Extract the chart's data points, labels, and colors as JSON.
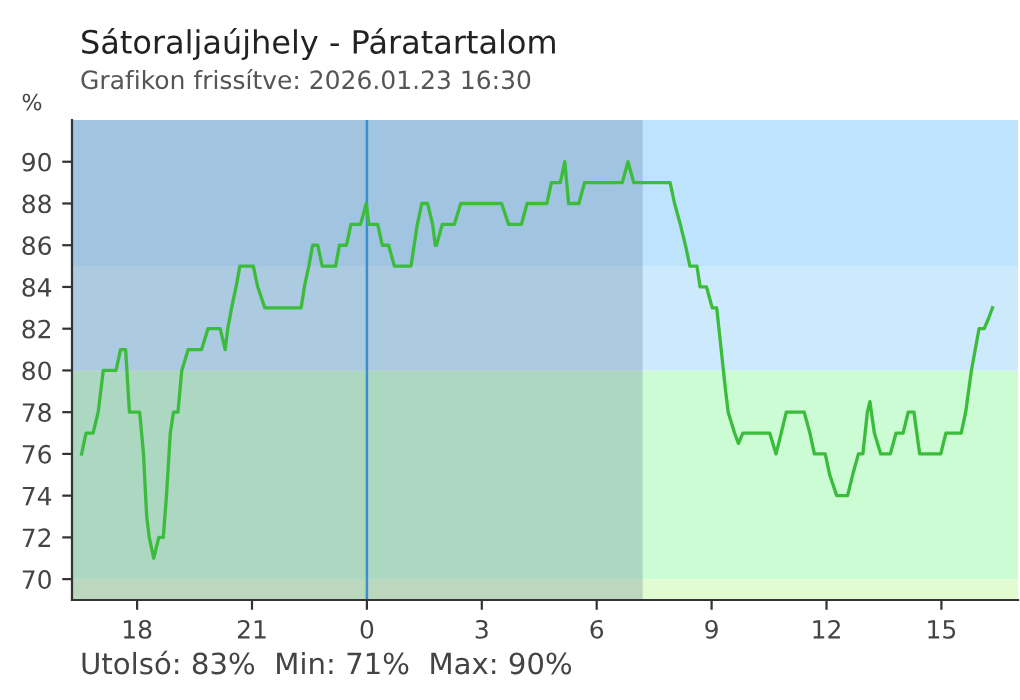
{
  "chart_data": {
    "type": "line",
    "title": "Sátoraljaújhely - Páratartalom",
    "subtitle": "Grafikon frissítve: 2026.01.23 16:30",
    "ylabel": "%",
    "annotations": [
      "Utolsó: 83%  Min: 71%  Max: 90%"
    ],
    "xlim": [
      "2026-01-22T16:18",
      "2026-01-23T17:00"
    ],
    "ylim": [
      69,
      92
    ],
    "xticks": [
      {
        "value": "2026-01-22T18:00",
        "label": "18"
      },
      {
        "value": "2026-01-22T21:00",
        "label": "21"
      },
      {
        "value": "2026-01-23T00:00",
        "label": "0"
      },
      {
        "value": "2026-01-23T03:00",
        "label": "3"
      },
      {
        "value": "2026-01-23T06:00",
        "label": "6"
      },
      {
        "value": "2026-01-23T09:00",
        "label": "9"
      },
      {
        "value": "2026-01-23T12:00",
        "label": "12"
      },
      {
        "value": "2026-01-23T15:00",
        "label": "15"
      }
    ],
    "yticks": [
      70,
      72,
      74,
      76,
      78,
      80,
      82,
      84,
      86,
      88,
      90
    ],
    "bands": [
      {
        "axis": "y",
        "from": 69,
        "to": 70,
        "color": "#e0fcd0"
      },
      {
        "axis": "y",
        "from": 70,
        "to": 80,
        "color": "#ccfcd4"
      },
      {
        "axis": "y",
        "from": 80,
        "to": 85,
        "color": "#cdeafd"
      },
      {
        "axis": "y",
        "from": 85,
        "to": 92,
        "color": "#bee3fc"
      },
      {
        "axis": "x",
        "from": "2026-01-22T16:18",
        "to": "2026-01-23T07:12",
        "color": "#4a6a8a"
      }
    ],
    "ref_lines": [
      {
        "axis": "x",
        "value": "2026-01-23T00:00",
        "color": "#3a8fd0"
      }
    ],
    "series": [
      {
        "color": "#3cbc3c",
        "x": [
          "2026-01-22T16:33",
          "2026-01-22T16:40",
          "2026-01-22T16:51",
          "2026-01-22T16:59",
          "2026-01-22T17:07",
          "2026-01-22T17:13",
          "2026-01-22T17:27",
          "2026-01-22T17:34",
          "2026-01-22T17:42",
          "2026-01-22T17:48",
          "2026-01-22T17:55",
          "2026-01-22T18:04",
          "2026-01-22T18:10",
          "2026-01-22T18:15",
          "2026-01-22T18:19",
          "2026-01-22T18:26",
          "2026-01-22T18:34",
          "2026-01-22T18:41",
          "2026-01-22T18:46",
          "2026-01-22T18:52",
          "2026-01-22T18:57",
          "2026-01-22T19:04",
          "2026-01-22T19:10",
          "2026-01-22T19:20",
          "2026-01-22T19:41",
          "2026-01-22T19:51",
          "2026-01-22T20:10",
          "2026-01-22T20:18",
          "2026-01-22T20:22",
          "2026-01-22T20:28",
          "2026-01-22T20:35",
          "2026-01-22T20:41",
          "2026-01-22T21:02",
          "2026-01-22T21:09",
          "2026-01-22T21:20",
          "2026-01-22T22:17",
          "2026-01-22T22:22",
          "2026-01-22T22:29",
          "2026-01-22T22:35",
          "2026-01-22T22:43",
          "2026-01-22T22:50",
          "2026-01-22T23:11",
          "2026-01-22T23:17",
          "2026-01-22T23:28",
          "2026-01-22T23:35",
          "2026-01-22T23:50",
          "2026-01-22T23:59",
          "2026-01-23T00:03",
          "2026-01-23T00:17",
          "2026-01-23T00:24",
          "2026-01-23T00:34",
          "2026-01-23T00:43",
          "2026-01-23T01:09",
          "2026-01-23T01:19",
          "2026-01-23T01:26",
          "2026-01-23T01:35",
          "2026-01-23T01:43",
          "2026-01-23T01:47",
          "2026-01-23T01:49",
          "2026-01-23T01:58",
          "2026-01-23T02:17",
          "2026-01-23T02:27",
          "2026-01-23T03:31",
          "2026-01-23T03:42",
          "2026-01-23T04:02",
          "2026-01-23T04:11",
          "2026-01-23T04:42",
          "2026-01-23T04:49",
          "2026-01-23T05:03",
          "2026-01-23T05:10",
          "2026-01-23T05:16",
          "2026-01-23T05:32",
          "2026-01-23T05:41",
          "2026-01-23T06:40",
          "2026-01-23T06:49",
          "2026-01-23T06:58",
          "2026-01-23T07:55",
          "2026-01-23T08:02",
          "2026-01-23T08:11",
          "2026-01-23T08:19",
          "2026-01-23T08:26",
          "2026-01-23T08:37",
          "2026-01-23T08:42",
          "2026-01-23T08:52",
          "2026-01-23T09:01",
          "2026-01-23T09:08",
          "2026-01-23T09:15",
          "2026-01-23T09:22",
          "2026-01-23T09:26",
          "2026-01-23T09:36",
          "2026-01-23T09:42",
          "2026-01-23T09:49",
          "2026-01-23T10:00",
          "2026-01-23T10:31",
          "2026-01-23T10:41",
          "2026-01-23T10:49",
          "2026-01-23T10:57",
          "2026-01-23T11:25",
          "2026-01-23T11:34",
          "2026-01-23T11:41",
          "2026-01-23T11:58",
          "2026-01-23T12:05",
          "2026-01-23T12:16",
          "2026-01-23T12:23",
          "2026-01-23T12:33",
          "2026-01-23T12:41",
          "2026-01-23T12:50",
          "2026-01-23T12:57",
          "2026-01-23T13:04",
          "2026-01-23T13:08",
          "2026-01-23T13:15",
          "2026-01-23T13:25",
          "2026-01-23T13:40",
          "2026-01-23T13:49",
          "2026-01-23T14:00",
          "2026-01-23T14:08",
          "2026-01-23T14:17",
          "2026-01-23T14:26",
          "2026-01-23T14:33",
          "2026-01-23T14:59",
          "2026-01-23T15:07",
          "2026-01-23T15:31",
          "2026-01-23T15:38",
          "2026-01-23T15:47",
          "2026-01-23T15:53",
          "2026-01-23T15:59",
          "2026-01-23T16:07",
          "2026-01-23T16:14",
          "2026-01-23T16:20"
        ],
        "values": [
          76,
          77,
          77,
          78,
          80,
          80,
          80,
          81,
          81,
          78,
          78,
          78,
          76,
          73,
          72,
          71,
          72,
          72,
          74,
          77,
          78,
          78,
          80,
          81,
          81,
          82,
          82,
          81,
          82,
          83,
          84,
          85,
          85,
          84,
          83,
          83,
          84,
          85,
          86,
          86,
          85,
          85,
          86,
          86,
          87,
          87,
          88,
          87,
          87,
          86,
          86,
          85,
          85,
          87,
          88,
          88,
          87,
          86,
          86,
          87,
          87,
          88,
          88,
          87,
          87,
          88,
          88,
          89,
          89,
          90,
          88,
          88,
          89,
          89,
          90,
          89,
          89,
          88,
          87,
          86,
          85,
          85,
          84,
          84,
          83,
          83,
          81,
          79,
          78,
          77,
          76.5,
          77,
          77,
          77,
          76,
          77,
          78,
          78,
          77,
          76,
          76,
          75,
          74,
          74,
          74,
          75,
          76,
          76,
          78,
          78.5,
          77,
          76,
          76,
          77,
          77,
          78,
          78,
          76,
          76,
          76,
          77,
          77,
          78,
          80,
          81,
          82,
          82,
          82.5,
          83
        ]
      }
    ]
  }
}
